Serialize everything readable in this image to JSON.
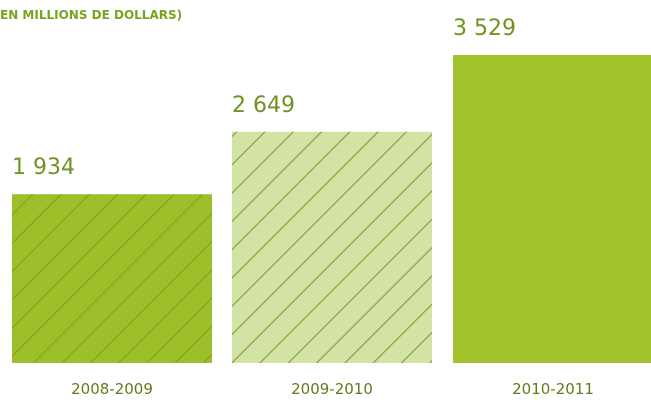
{
  "chart_data": {
    "type": "bar",
    "title": "EN MILLIONS DE DOLLARS)",
    "categories": [
      "2008-2009",
      "2009-2010",
      "2010-2011"
    ],
    "values": [
      1934,
      2649,
      3529
    ],
    "value_labels": [
      "1 934",
      "2 649",
      "3 529"
    ],
    "colors": [
      "#9dbf2a",
      "#d3e3a6",
      "#a2c32b"
    ],
    "hatch": [
      true,
      true,
      false
    ],
    "hatch_color": "#7f9e25"
  }
}
